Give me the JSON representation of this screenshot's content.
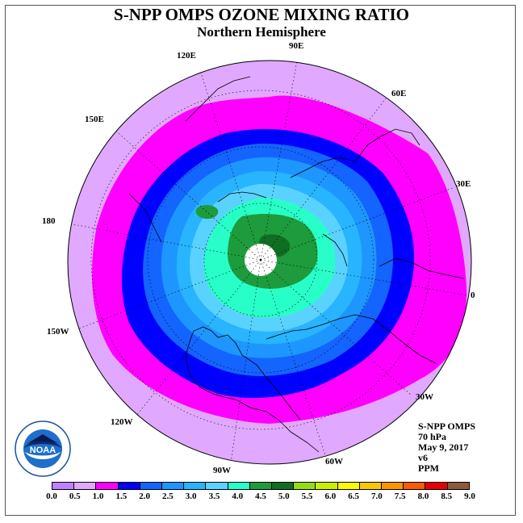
{
  "title": "S-NPP OMPS OZONE MIXING RATIO",
  "subtitle": "Northern Hemisphere",
  "longitude_labels": [
    "90E",
    "60E",
    "30E",
    "0",
    "30W",
    "60W",
    "90W",
    "120W",
    "150W",
    "180",
    "150E",
    "120E"
  ],
  "info": {
    "instrument": "S-NPP OMPS",
    "level": "70 hPa",
    "date": "May 9, 2017",
    "version": "v6",
    "units": "PPM"
  },
  "logo": {
    "text": "NOAA",
    "icon": "noaa-logo-icon",
    "ring_text": "NATIONAL OCEANIC AND ATMOSPHERIC ADMINISTRATION  U.S. DEPARTMENT OF COMMERCE"
  },
  "colorbar": {
    "ticks": [
      "0.0",
      "0.5",
      "1.0",
      "1.5",
      "2.0",
      "2.5",
      "3.0",
      "3.5",
      "4.0",
      "4.5",
      "5.0",
      "5.5",
      "6.0",
      "6.5",
      "7.0",
      "7.5",
      "8.0",
      "8.5",
      "9.0"
    ],
    "colors": [
      "#c080ff",
      "#e0a8ff",
      "#ff00ff",
      "#0000ff",
      "#1464ff",
      "#1e96ff",
      "#28b4ff",
      "#5ad2ff",
      "#28ffc8",
      "#1e9b3c",
      "#0f6e23",
      "#96dc14",
      "#c8f000",
      "#fafa00",
      "#fac800",
      "#fa9600",
      "#fa5a00",
      "#e60000",
      "#8c5a3c"
    ]
  }
}
